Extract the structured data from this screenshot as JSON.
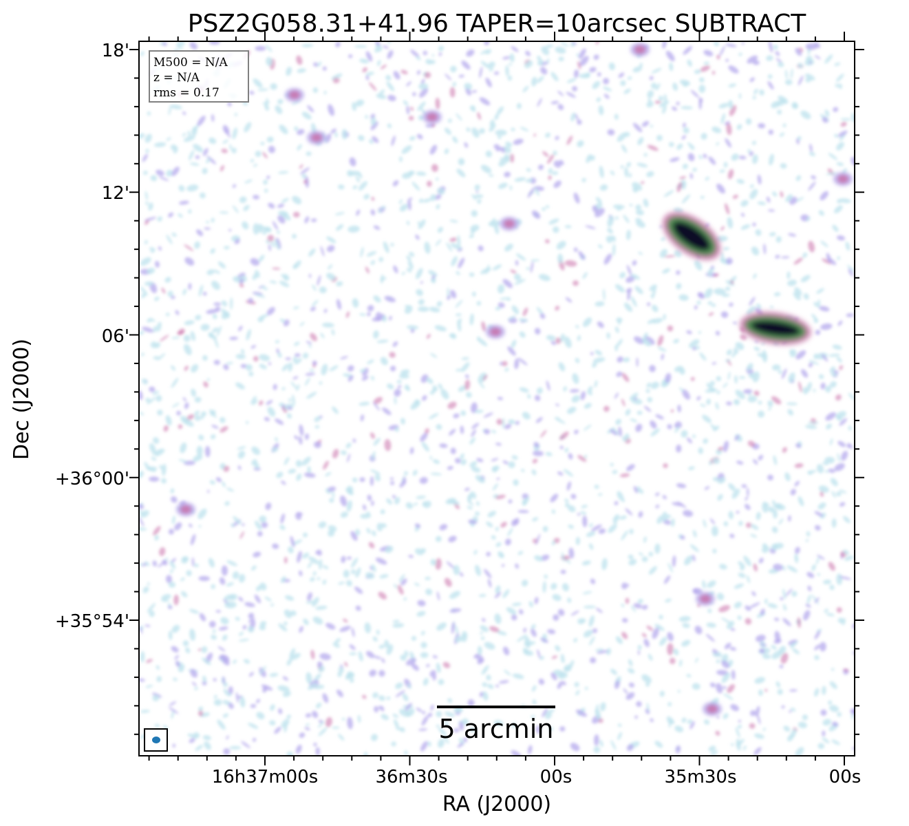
{
  "chart_data": {
    "type": "heatmap",
    "title": "PSZ2G058.31+41.96 TAPER=10arcsec SUBTRACT",
    "xlabel": "RA (J2000)",
    "ylabel": "Dec (J2000)",
    "x_ticks": [
      "16h37m00s",
      "36m30s",
      "00s",
      "35m30s",
      "00s"
    ],
    "y_ticks": [
      "18'",
      "12'",
      "06'",
      "+36°00'",
      "+35°54'"
    ],
    "info_box": [
      "M500 = N/A",
      "z = N/A",
      "rms = 0.17"
    ],
    "scalebar_label": "5 arcmin",
    "colormap": [
      "#ffffff",
      "#bfe4ee",
      "#b4a8ec",
      "#c870a8",
      "#4f8f52",
      "#101028"
    ],
    "beam_color": "#1f77b4",
    "grid": false
  }
}
